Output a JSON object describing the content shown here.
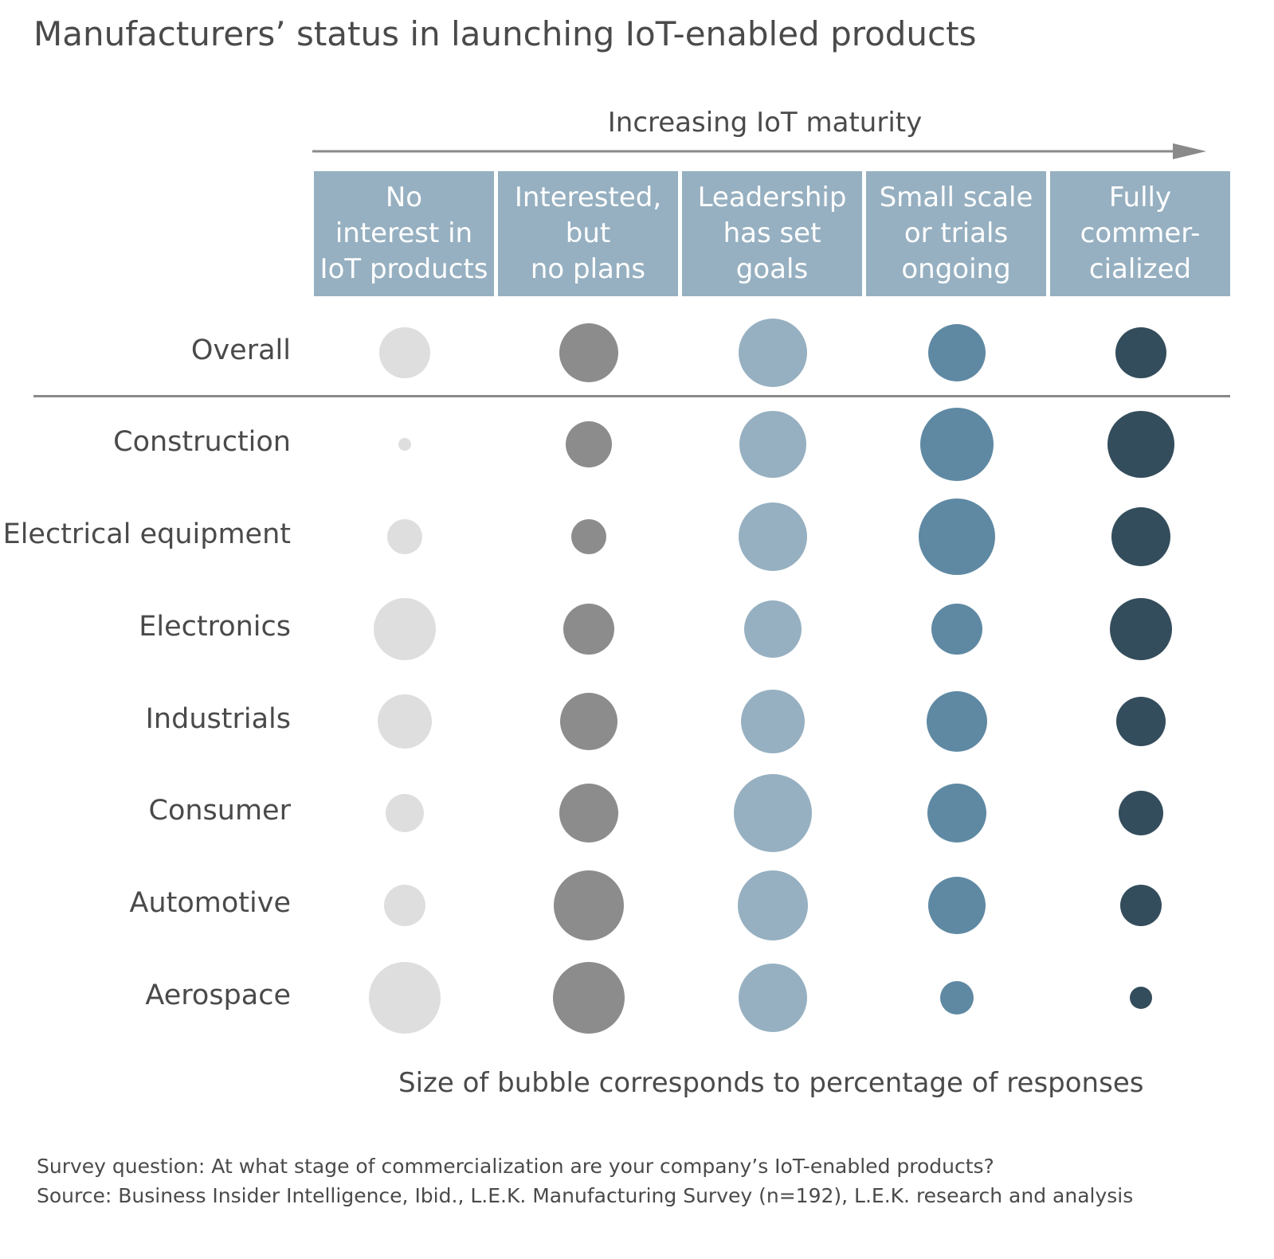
{
  "title": "Manufacturers’ status in launching IoT-enabled products",
  "axis_caption": "Increasing IoT maturity",
  "note": "Size of bubble corresponds to percentage of responses",
  "footer": {
    "question": "Survey question: At what stage of commercialization are your company’s IoT-enabled products?",
    "source": "Source: Business Insider Intelligence, Ibid., L.E.K. Manufacturing Survey (n=192), L.E.K. research and analysis"
  },
  "colors": {
    "header_bg": "#96b0c1",
    "arrow": "#8a8a8a",
    "divider": "#8a8a8a",
    "series": [
      "#dedede",
      "#8c8c8c",
      "#96b0c1",
      "#5f89a3",
      "#344d5c"
    ]
  },
  "chart_data": {
    "type": "bubble-matrix",
    "title": "Manufacturers’ status in launching IoT-enabled products",
    "categories": [
      "No\ninterest in\nIoT products",
      "Interested,\nbut\nno plans",
      "Leadership\nhas set\ngoals",
      "Small scale\nor trials\nongoing",
      "Fully\ncommer-\ncialized"
    ],
    "rows": [
      "Overall",
      "Construction",
      "Electrical equipment",
      "Electronics",
      "Industrials",
      "Consumer",
      "Automotive",
      "Aerospace"
    ],
    "relative_size": [
      [
        64,
        74,
        86,
        72,
        64
      ],
      [
        16,
        58,
        84,
        92,
        84
      ],
      [
        44,
        44,
        86,
        96,
        74
      ],
      [
        78,
        64,
        72,
        64,
        78
      ],
      [
        68,
        72,
        80,
        76,
        62
      ],
      [
        48,
        74,
        98,
        74,
        56
      ],
      [
        52,
        88,
        88,
        72,
        52
      ],
      [
        90,
        90,
        86,
        42,
        28
      ]
    ],
    "size_encoding": "percentage of responses (relative bubble diameter)"
  }
}
